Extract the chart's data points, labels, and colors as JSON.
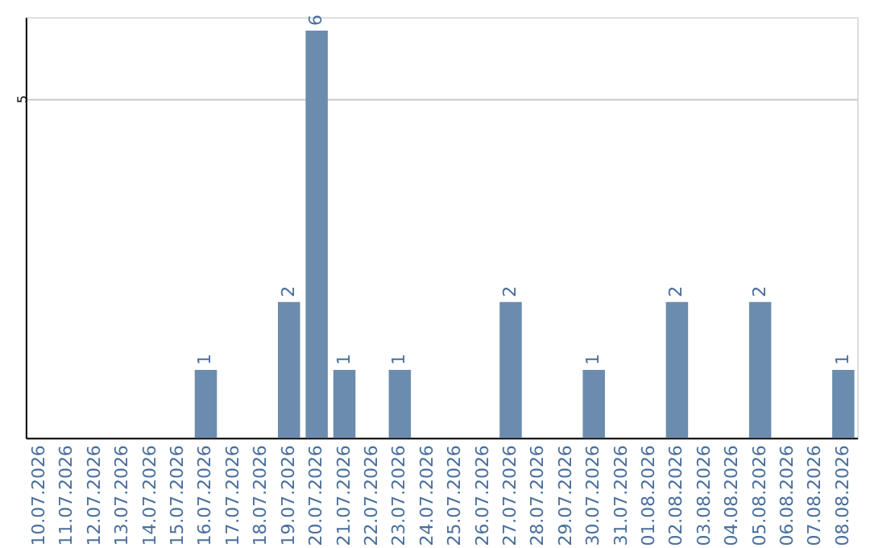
{
  "chart_data": {
    "type": "bar",
    "categories": [
      "10.07.2026",
      "11.07.2026",
      "12.07.2026",
      "13.07.2026",
      "14.07.2026",
      "15.07.2026",
      "16.07.2026",
      "17.07.2026",
      "18.07.2026",
      "19.07.2026",
      "20.07.2026",
      "21.07.2026",
      "22.07.2026",
      "23.07.2026",
      "24.07.2026",
      "25.07.2026",
      "26.07.2026",
      "27.07.2026",
      "28.07.2026",
      "29.07.2026",
      "30.07.2026",
      "31.07.2026",
      "01.08.2026",
      "02.08.2026",
      "03.08.2026",
      "04.08.2026",
      "05.08.2026",
      "06.08.2026",
      "07.08.2026",
      "08.08.2026"
    ],
    "values": [
      0,
      0,
      0,
      0,
      0,
      0,
      1,
      0,
      0,
      2,
      6,
      1,
      0,
      1,
      0,
      0,
      0,
      2,
      0,
      0,
      1,
      0,
      0,
      2,
      0,
      0,
      2,
      0,
      0,
      1
    ],
    "value_labels": [
      null,
      null,
      null,
      null,
      null,
      null,
      "1",
      null,
      null,
      "2",
      "6",
      "1",
      null,
      "1",
      null,
      null,
      null,
      "2",
      null,
      null,
      "1",
      null,
      null,
      "2",
      null,
      null,
      "2",
      null,
      null,
      "1"
    ],
    "color": "#6b8cae",
    "ylim": [
      0,
      6.2
    ],
    "yticks": [
      5
    ],
    "grid": "y"
  }
}
